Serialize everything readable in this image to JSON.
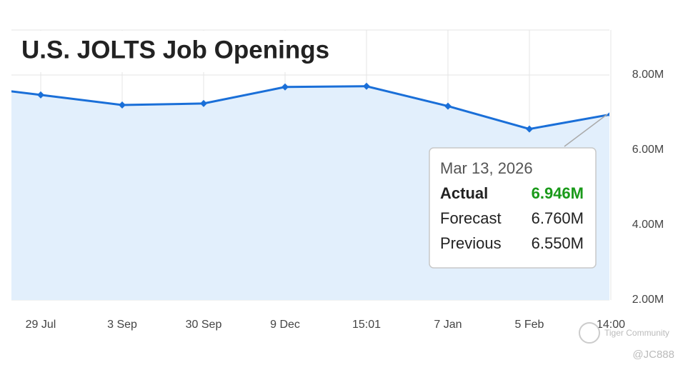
{
  "chart_data": {
    "type": "line",
    "title": "U.S. JOLTS Job Openings",
    "categories": [
      null,
      "29 Jul",
      "3 Sep",
      "30 Sep",
      "9 Dec",
      "15:01",
      "7 Jan",
      "5 Feb",
      "14:00"
    ],
    "series": [
      {
        "name": "Actual",
        "color": "#1a6fd8",
        "values": [
          7.73,
          7.47,
          7.2,
          7.24,
          7.68,
          7.7,
          7.17,
          6.56,
          6.95
        ]
      }
    ],
    "ylim": [
      2,
      9.2
    ],
    "yticks": [
      {
        "value": 2,
        "label": "2.00M"
      },
      {
        "value": 4,
        "label": "4.00M"
      },
      {
        "value": 6,
        "label": "6.00M"
      },
      {
        "value": 8,
        "label": "8.00M"
      }
    ],
    "grid": true,
    "area_color": "#e2effc",
    "tooltip": {
      "date": "Mar 13, 2026",
      "rows": [
        [
          "Actual",
          "6.946M"
        ],
        [
          "Forecast",
          "6.760M"
        ],
        [
          "Previous",
          "6.550M"
        ]
      ]
    },
    "watermark": {
      "brand": "Tiger Community",
      "user": "@JC888"
    }
  }
}
